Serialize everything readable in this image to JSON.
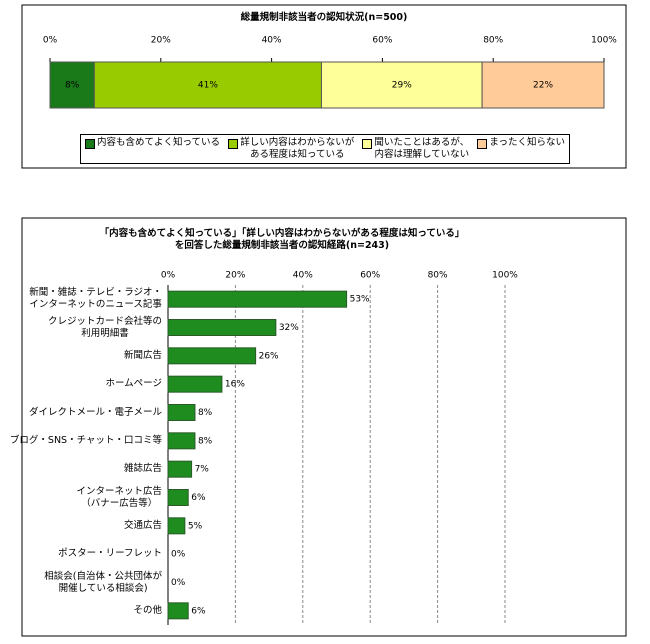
{
  "chart_data": [
    {
      "type": "stacked_bar",
      "orientation": "horizontal",
      "title": "総量規制非該当者の認知状況(n=500)",
      "xlim": [
        0,
        100
      ],
      "xticks": [
        {
          "value": 0,
          "label": "0%"
        },
        {
          "value": 20,
          "label": "20%"
        },
        {
          "value": 40,
          "label": "40%"
        },
        {
          "value": 60,
          "label": "60%"
        },
        {
          "value": 80,
          "label": "80%"
        },
        {
          "value": 100,
          "label": "100%"
        }
      ],
      "series": [
        {
          "name": "内容も含めてよく知っている",
          "color": "#1a7a1a",
          "values": [
            8
          ],
          "value_labels": [
            "8%"
          ]
        },
        {
          "name": "詳しい内容はわからないが\nある程度は知っている",
          "color": "#99cc00",
          "values": [
            41
          ],
          "value_labels": [
            "41%"
          ]
        },
        {
          "name": "聞いたことはあるが、\n内容は理解していない",
          "color": "#ffff99",
          "values": [
            29
          ],
          "value_labels": [
            "29%"
          ]
        },
        {
          "name": "まったく知らない",
          "color": "#ffcc99",
          "values": [
            22
          ],
          "value_labels": [
            "22%"
          ]
        }
      ],
      "legend": "bottom"
    },
    {
      "type": "bar",
      "orientation": "horizontal",
      "title": "「内容も含めてよく知っている」「詳しい内容はわからないがある程度は知っている」\nを回答した総量規制非該当者の認知経路(n=243)",
      "categories": [
        "新聞・雑誌・テレビ・ラジオ・\nインターネットのニュース記事",
        "クレジットカード会社等の\n利用明細書",
        "新聞広告",
        "ホームページ",
        "ダイレクトメール・電子メール",
        "ブログ・SNS・チャット・口コミ等",
        "雑誌広告",
        "インターネット広告\n（バナー広告等）",
        "交通広告",
        "ポスター・リーフレット",
        "相談会(自治体・公共団体が\n開催している相談会)",
        "その他"
      ],
      "values": [
        53,
        32,
        26,
        16,
        8,
        8,
        7,
        6,
        5,
        0,
        0,
        6
      ],
      "value_labels": [
        "53%",
        "32%",
        "26%",
        "16%",
        "8%",
        "8%",
        "7%",
        "6%",
        "5%",
        "0%",
        "0%",
        "6%"
      ],
      "color": "#1e8c1e",
      "xlim": [
        0,
        100
      ],
      "xticks": [
        {
          "value": 0,
          "label": "0%"
        },
        {
          "value": 20,
          "label": "20%"
        },
        {
          "value": 40,
          "label": "40%"
        },
        {
          "value": 60,
          "label": "60%"
        },
        {
          "value": 80,
          "label": "80%"
        },
        {
          "value": 100,
          "label": "100%"
        }
      ],
      "grid": true
    }
  ]
}
